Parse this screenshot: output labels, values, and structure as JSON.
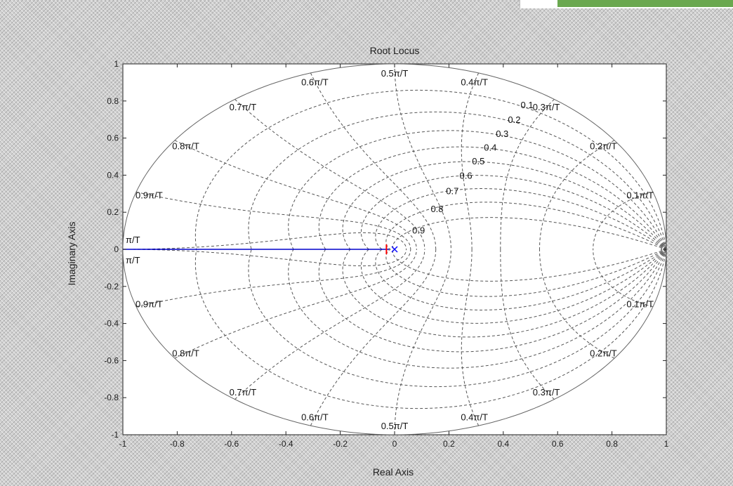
{
  "chart_data": {
    "type": "line",
    "title": "Root Locus",
    "xlabel": "Real Axis",
    "ylabel": "Imaginary Axis",
    "xlim": [
      -1,
      1
    ],
    "ylim": [
      -1,
      1
    ],
    "x_ticks": [
      "-1",
      "-0.8",
      "-0.6",
      "-0.4",
      "-0.2",
      "0",
      "0.2",
      "0.4",
      "0.6",
      "0.8",
      "1"
    ],
    "y_ticks": [
      "1",
      "0.8",
      "0.6",
      "0.4",
      "0.2",
      "0",
      "-0.2",
      "-0.4",
      "-0.6",
      "-0.8",
      "-1"
    ],
    "grid": "zgrid",
    "unit_circle": true,
    "damping_ratios": [
      0.1,
      0.2,
      0.3,
      0.4,
      0.5,
      0.6,
      0.7,
      0.8,
      0.9
    ],
    "damping_labels": [
      "0.1",
      "0.2",
      "0.3",
      "0.4",
      "0.5",
      "0.6",
      "0.7",
      "0.8",
      "0.9"
    ],
    "natural_frequencies": [
      0.1,
      0.2,
      0.3,
      0.4,
      0.5,
      0.6,
      0.7,
      0.8,
      0.9,
      1.0
    ],
    "frequency_labels": [
      "0.1π/T",
      "0.2π/T",
      "0.3π/T",
      "0.4π/T",
      "0.5π/T",
      "0.6π/T",
      "0.7π/T",
      "0.8π/T",
      "0.9π/T",
      "π/T"
    ],
    "series": [
      {
        "color": "#0000cc",
        "x": [
          -1,
          -0.02
        ],
        "y": [
          0,
          0
        ]
      }
    ],
    "markers": [
      {
        "type": "pole",
        "symbol": "x",
        "x": 0.0,
        "y": 0,
        "color": "#0000ff"
      },
      {
        "type": "zero",
        "symbol": "o",
        "x": 1.0,
        "y": 0,
        "color": "#808080"
      },
      {
        "type": "current-gain",
        "symbol": "|",
        "x": -0.03,
        "y": 0,
        "color": "#ff0000"
      }
    ],
    "colors": {
      "grid": "#555555",
      "locus": "#0000cc",
      "plot_background": "#ffffff"
    }
  }
}
